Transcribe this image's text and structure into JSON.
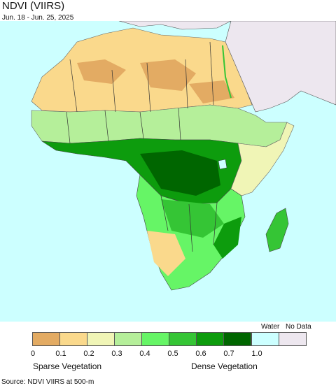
{
  "title": "NDVI (VIIRS)",
  "date_range": "Jun. 18 - Jun. 25, 2025",
  "legend": {
    "water_label": "Water",
    "nodata_label": "No Data",
    "ticks": [
      "0",
      "0.1",
      "0.2",
      "0.3",
      "0.4",
      "0.5",
      "0.6",
      "0.7",
      "1.0"
    ],
    "colors": [
      "#e3ab63",
      "#fad98c",
      "#f0f5b6",
      "#b5ef9a",
      "#66f566",
      "#35c535",
      "#0d9c0d",
      "#006600"
    ],
    "water_color": "#ccffff",
    "nodata_color": "#ede7ef",
    "low_caption": "Sparse Vegetation",
    "high_caption": "Dense Vegetation"
  },
  "source": "Source: NDVI VIIRS at 500-m"
}
